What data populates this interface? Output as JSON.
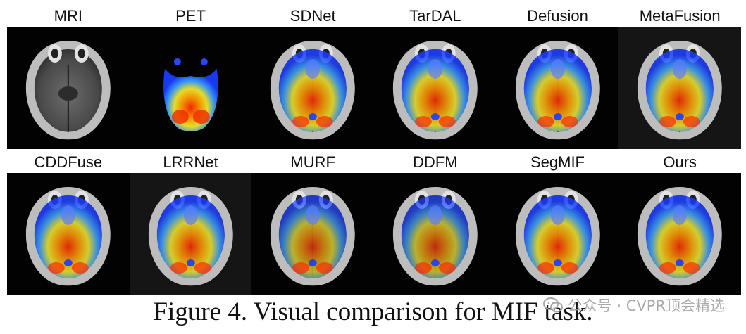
{
  "row1_labels": [
    "MRI",
    "PET",
    "SDNet",
    "TarDAL",
    "Defusion",
    "MetaFusion"
  ],
  "row2_labels": [
    "CDDFuse",
    "LRRNet",
    "MURF",
    "DDFM",
    "SegMIF",
    "Ours"
  ],
  "caption": "Figure 4. Visual comparison for MIF task.",
  "watermark": "公众号 · CVPR顶会精选",
  "colors": {
    "background": "#ffffff",
    "text": "#111111",
    "tile": "#020202"
  }
}
